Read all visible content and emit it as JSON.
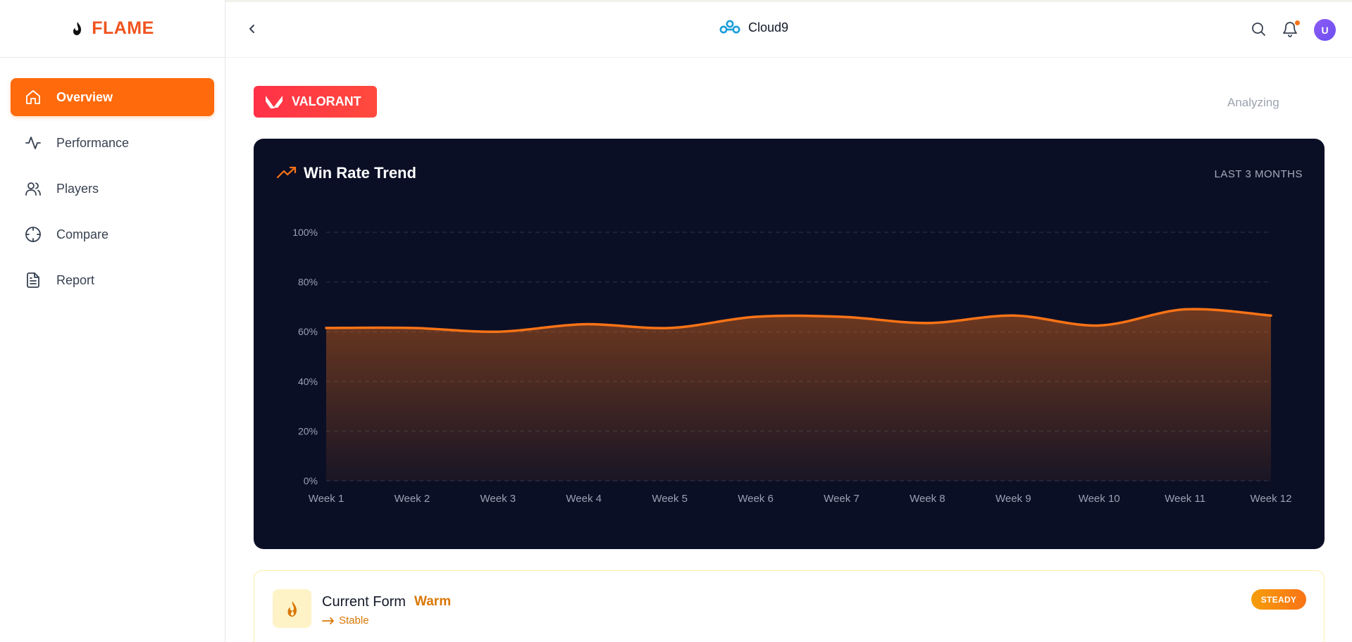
{
  "brand": {
    "name": "FLAME",
    "accent": "#ff6a0c"
  },
  "sidebar": {
    "items": [
      {
        "label": "Overview",
        "icon": "home-icon",
        "active": true
      },
      {
        "label": "Performance",
        "icon": "activity-icon",
        "active": false
      },
      {
        "label": "Players",
        "icon": "users-icon",
        "active": false
      },
      {
        "label": "Compare",
        "icon": "crosshair-icon",
        "active": false
      },
      {
        "label": "Report",
        "icon": "document-icon",
        "active": false
      }
    ]
  },
  "header": {
    "team_name": "Cloud9",
    "avatar_initial": "U",
    "notification_dot_color": "#f97316"
  },
  "game": {
    "name": "VALORANT",
    "badge_color": "#ff3148"
  },
  "status": {
    "text": "Analyzing"
  },
  "chart_data": {
    "type": "area",
    "title": "Win Rate Trend",
    "range_label": "LAST 3 MONTHS",
    "categories": [
      "Week 1",
      "Week 2",
      "Week 3",
      "Week 4",
      "Week 5",
      "Week 6",
      "Week 7",
      "Week 8",
      "Week 9",
      "Week 10",
      "Week 11",
      "Week 12"
    ],
    "values": [
      61.5,
      61.5,
      60,
      63,
      61.5,
      66,
      66,
      63.5,
      66.5,
      62.5,
      69,
      66.5
    ],
    "y_ticks": [
      "0%",
      "20%",
      "40%",
      "60%",
      "80%",
      "100%"
    ],
    "ylim": [
      0,
      100
    ],
    "grid": true,
    "line_color": "#f97316"
  },
  "current_form": {
    "title": "Current Form",
    "value": "Warm",
    "trend": "Stable",
    "badge": "STEADY"
  }
}
